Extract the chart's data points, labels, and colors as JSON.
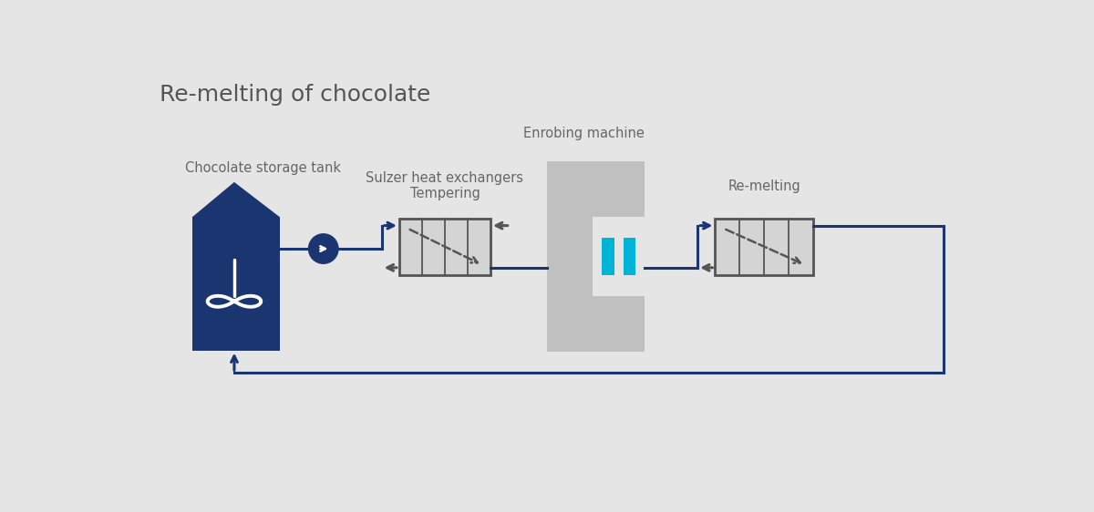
{
  "title": "Re-melting of chocolate",
  "bg_color": "#e5e5e5",
  "blue": "#1a3570",
  "light_blue": "#00b4d8",
  "gray_fill": "#c0c0c0",
  "hx_fill": "#d4d4d4",
  "hx_edge": "#555555",
  "text_color": "#666666",
  "labels": {
    "storage_tank": "Chocolate storage tank",
    "heat_exchanger": "Sulzer heat exchangers",
    "tempering": "Tempering",
    "enrobing": "Enrobing machine",
    "remelting": "Re-melting"
  }
}
